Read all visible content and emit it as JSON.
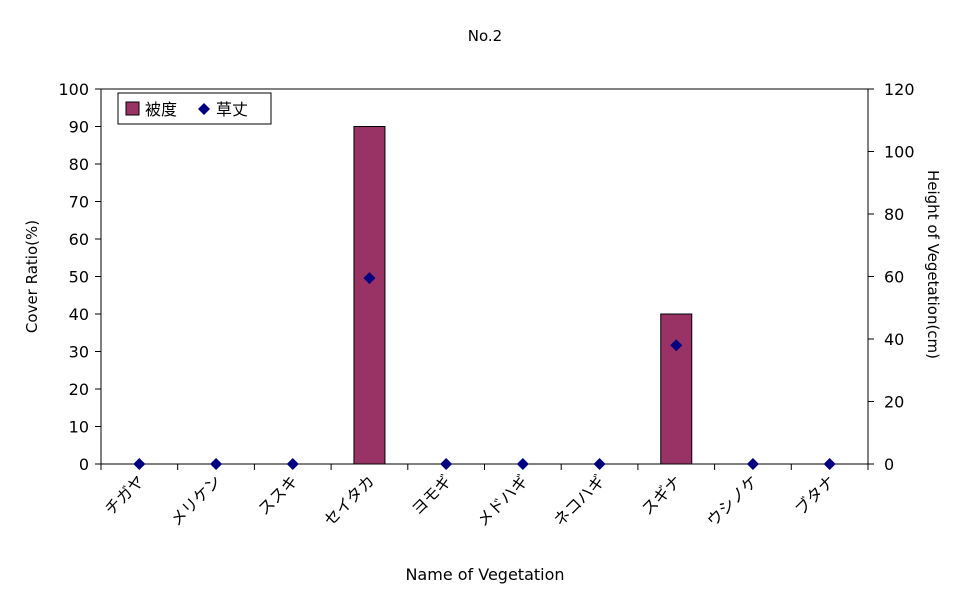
{
  "chart_data": {
    "type": "bar",
    "title": "No.2",
    "xlabel": "Name of Vegetation",
    "ylabel": "Cover Ratio(%)",
    "y2label": "Height of Vegetation(cm)",
    "categories": [
      "チガヤ",
      "メリケン",
      "ススキ",
      "セイタカ",
      "ヨモギ",
      "メドハギ",
      "ネコハギ",
      "スギナ",
      "ウシノケ",
      "ブタナ"
    ],
    "ylim": [
      0,
      100
    ],
    "y_ticks": [
      0,
      10,
      20,
      30,
      40,
      50,
      60,
      70,
      80,
      90,
      100
    ],
    "y2lim": [
      0,
      120
    ],
    "y2_ticks": [
      0,
      20,
      40,
      60,
      80,
      100,
      120
    ],
    "grid": false,
    "legend_position": "top-left",
    "series": [
      {
        "name": "被度",
        "kind": "bar",
        "axis": "left",
        "color": "#993366",
        "values": [
          0,
          0,
          0,
          90,
          0,
          0,
          0,
          40,
          0,
          0
        ]
      },
      {
        "name": "草丈",
        "kind": "scatter",
        "axis": "right",
        "marker": "diamond",
        "color": "#000080",
        "values": [
          0,
          0,
          0,
          59.5,
          0,
          0,
          0,
          38,
          0,
          0
        ]
      }
    ]
  }
}
